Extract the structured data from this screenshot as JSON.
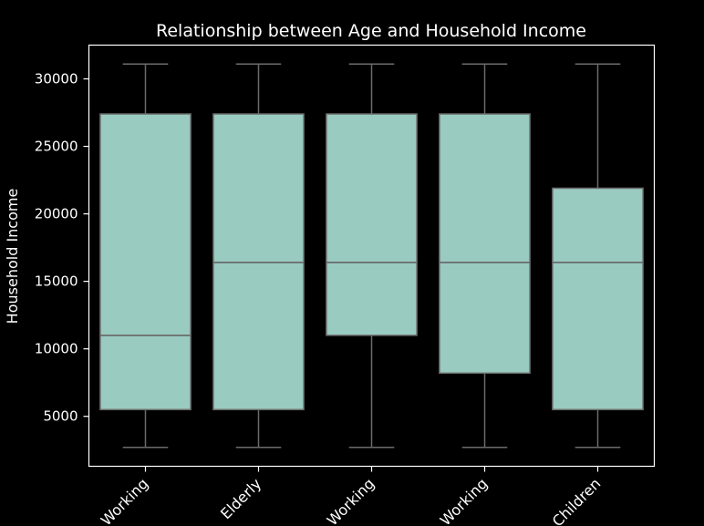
{
  "chart_data": {
    "type": "box",
    "title": "Relationship between Age and Household Income",
    "xlabel": "",
    "ylabel": "Household Income",
    "categories": [
      "Working",
      "Elderly",
      "Working",
      "Working",
      "Children"
    ],
    "boxes": [
      {
        "min": 2700,
        "q1": 5500,
        "median": 11000,
        "q3": 27400,
        "max": 31100
      },
      {
        "min": 2700,
        "q1": 5500,
        "median": 16400,
        "q3": 27400,
        "max": 31100
      },
      {
        "min": 2700,
        "q1": 11000,
        "median": 16400,
        "q3": 27400,
        "max": 31100
      },
      {
        "min": 2700,
        "q1": 8200,
        "median": 16400,
        "q3": 27400,
        "max": 31100
      },
      {
        "min": 2700,
        "q1": 5500,
        "median": 16400,
        "q3": 21900,
        "max": 31100
      }
    ],
    "yticks": [
      5000,
      10000,
      15000,
      20000,
      25000,
      30000
    ],
    "ylim": [
      1300,
      32500
    ],
    "grid": false,
    "colors": {
      "background": "#000000",
      "box_fill": "#99cbc1",
      "box_edge": "#6b6b6b",
      "axis": "#ffffff",
      "text": "#ffffff"
    }
  }
}
